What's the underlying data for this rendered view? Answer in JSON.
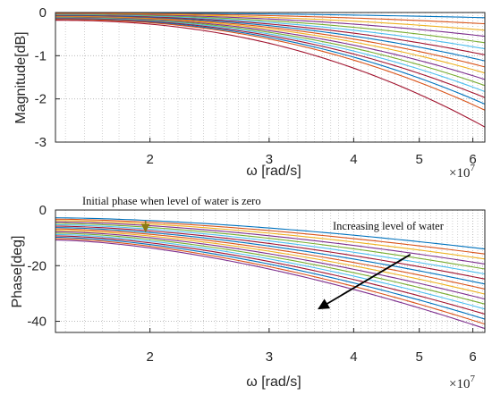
{
  "figure": {
    "colors": {
      "axis": "#262626",
      "grid": "#b0b0b0",
      "annotation_arrow_initial": "#8b7a14",
      "annotation_arrow_increase": "#000000"
    }
  },
  "chart_data": [
    {
      "type": "line",
      "title": "",
      "xlabel": "ω [rad/s]",
      "ylabel": "Magnitude[dB]",
      "xscale": "log",
      "x_multiplier": "×10^7",
      "x_multiplier_base": "×10",
      "x_multiplier_exp": "7",
      "xlim": [
        1.45,
        6.25
      ],
      "ylim": [
        -3,
        0
      ],
      "xticks": [
        2,
        3,
        4,
        5,
        6
      ],
      "xtick_labels": [
        "2",
        "3",
        "4",
        "5",
        "6"
      ],
      "yticks": [
        0,
        -1,
        -2,
        -3
      ],
      "ytick_labels": [
        "0",
        "-1",
        "-2",
        "-3"
      ],
      "grid": true,
      "grid_style": "dotted, minor log grid",
      "series_pattern": "family of 17 curves y = a * (x/1.45)^p, one per water level",
      "series": [
        {
          "color": "#0072BD",
          "end_value": -0.12,
          "start_value": -0.01
        },
        {
          "color": "#D95319",
          "end_value": -0.26,
          "start_value": -0.02
        },
        {
          "color": "#EDB120",
          "end_value": -0.41,
          "start_value": -0.03
        },
        {
          "color": "#7E2F8E",
          "end_value": -0.55,
          "start_value": -0.04
        },
        {
          "color": "#77AC30",
          "end_value": -0.7,
          "start_value": -0.05
        },
        {
          "color": "#4DBEEE",
          "end_value": -0.84,
          "start_value": -0.06
        },
        {
          "color": "#A2142F",
          "end_value": -0.98,
          "start_value": -0.07
        },
        {
          "color": "#0072BD",
          "end_value": -1.12,
          "start_value": -0.08
        },
        {
          "color": "#D95319",
          "end_value": -1.26,
          "start_value": -0.09
        },
        {
          "color": "#EDB120",
          "end_value": -1.4,
          "start_value": -0.1
        },
        {
          "color": "#7E2F8E",
          "end_value": -1.55,
          "start_value": -0.11
        },
        {
          "color": "#77AC30",
          "end_value": -1.69,
          "start_value": -0.12
        },
        {
          "color": "#4DBEEE",
          "end_value": -1.83,
          "start_value": -0.13
        },
        {
          "color": "#A2142F",
          "end_value": -1.97,
          "start_value": -0.14
        },
        {
          "color": "#0072BD",
          "end_value": -2.12,
          "start_value": -0.15
        },
        {
          "color": "#D95319",
          "end_value": -2.26,
          "start_value": -0.16
        },
        {
          "color": "#A2142F",
          "end_value": -2.65,
          "start_value": -0.18
        }
      ]
    },
    {
      "type": "line",
      "title": "",
      "xlabel": "ω [rad/s]",
      "ylabel": "Phase[deg]",
      "xscale": "log",
      "x_multiplier": "×10^7",
      "x_multiplier_base": "×10",
      "x_multiplier_exp": "7",
      "xlim": [
        1.45,
        6.25
      ],
      "ylim": [
        -44,
        0
      ],
      "xticks": [
        2,
        3,
        4,
        5,
        6
      ],
      "xtick_labels": [
        "2",
        "3",
        "4",
        "5",
        "6"
      ],
      "yticks": [
        0,
        -20,
        -40
      ],
      "ytick_labels": [
        "0",
        "-20",
        "-40"
      ],
      "grid": true,
      "grid_style": "dotted, minor log grid",
      "series_pattern": "family of 17 curves rising in magnitude from start_value to end_value",
      "series": [
        {
          "color": "#0072BD",
          "start_value": -2.8,
          "end_value": -14.0
        },
        {
          "color": "#D95319",
          "start_value": -3.3,
          "end_value": -15.8
        },
        {
          "color": "#EDB120",
          "start_value": -3.8,
          "end_value": -17.6
        },
        {
          "color": "#7E2F8E",
          "start_value": -4.3,
          "end_value": -19.4
        },
        {
          "color": "#77AC30",
          "start_value": -4.8,
          "end_value": -21.2
        },
        {
          "color": "#4DBEEE",
          "start_value": -5.3,
          "end_value": -23.0
        },
        {
          "color": "#A2142F",
          "start_value": -5.8,
          "end_value": -24.8
        },
        {
          "color": "#0072BD",
          "start_value": -6.3,
          "end_value": -26.6
        },
        {
          "color": "#D95319",
          "start_value": -6.8,
          "end_value": -28.4
        },
        {
          "color": "#EDB120",
          "start_value": -7.3,
          "end_value": -30.2
        },
        {
          "color": "#7E2F8E",
          "start_value": -7.8,
          "end_value": -32.0
        },
        {
          "color": "#77AC30",
          "start_value": -8.3,
          "end_value": -33.8
        },
        {
          "color": "#4DBEEE",
          "start_value": -8.8,
          "end_value": -35.6
        },
        {
          "color": "#A2142F",
          "start_value": -9.3,
          "end_value": -37.4
        },
        {
          "color": "#0072BD",
          "start_value": -9.8,
          "end_value": -39.2
        },
        {
          "color": "#D95319",
          "start_value": -10.3,
          "end_value": -41.0
        },
        {
          "color": "#7E2F8E",
          "start_value": -10.8,
          "end_value": -42.6
        }
      ],
      "annotations": [
        {
          "text": "Initial phase when level of water is zero",
          "arrow_from_x": 1.97,
          "arrow_from_y": -3.8,
          "arrow_to_x": 1.97,
          "arrow_to_y": -7.8
        },
        {
          "text": "Increasing level of water",
          "arrow_from_x": 4.85,
          "arrow_from_y": -16.0,
          "arrow_to_x": 3.55,
          "arrow_to_y": -35.5
        }
      ]
    }
  ]
}
